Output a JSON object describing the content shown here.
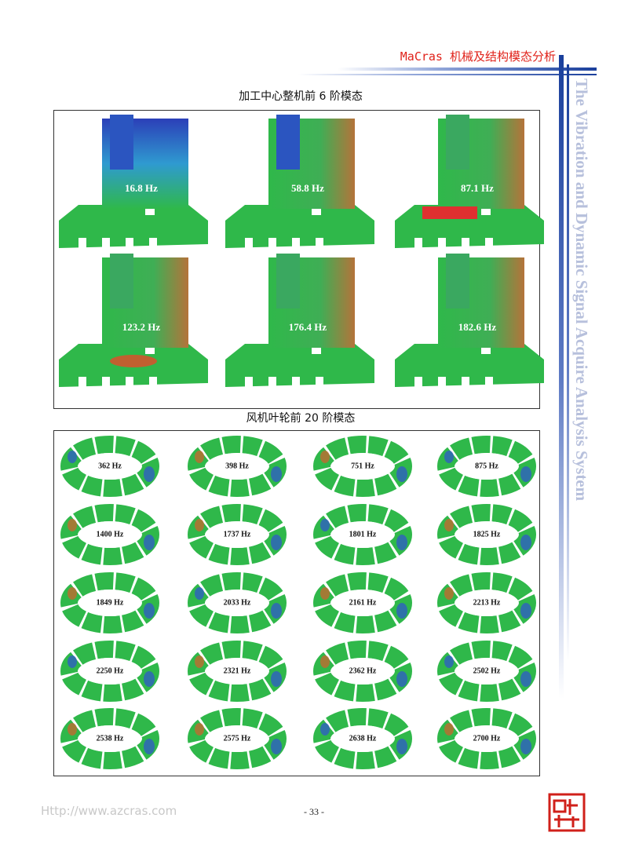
{
  "header": {
    "title": "MaCras 机械及结构模态分析",
    "side_text": "The Vibration and Dynamic Signal Acquire Analysis System"
  },
  "sections": [
    {
      "title": "加工中心整机前 6 阶模态",
      "modes": [
        "16.8 Hz",
        "58.8 Hz",
        "87.1 Hz",
        "123.2 Hz",
        "176.4 Hz",
        "182.6 Hz"
      ]
    },
    {
      "title": "风机叶轮前 20 阶模态",
      "modes": [
        "362 Hz",
        "398 Hz",
        "751 Hz",
        "875 Hz",
        "1400 Hz",
        "1737 Hz",
        "1801 Hz",
        "1825 Hz",
        "1849 Hz",
        "2033 Hz",
        "2161 Hz",
        "2213 Hz",
        "2250 Hz",
        "2321 Hz",
        "2362 Hz",
        "2502 Hz",
        "2538 Hz",
        "2575 Hz",
        "2638 Hz",
        "2700 Hz"
      ]
    }
  ],
  "footer": {
    "url": "Http://www.azcras.com",
    "page": "- 33 -"
  }
}
